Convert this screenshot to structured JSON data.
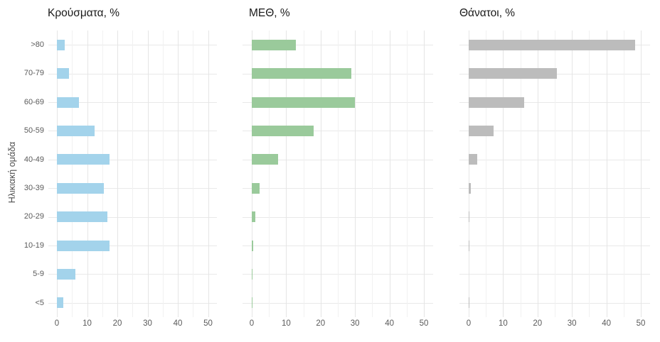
{
  "chart_data": {
    "type": "bar",
    "orientation": "horizontal",
    "title": "",
    "ylabel": "Ηλικιακή ομάδα",
    "xlabel": "",
    "xlim": [
      0,
      50
    ],
    "x_ticks": [
      0,
      10,
      20,
      30,
      40,
      50
    ],
    "x_minor_ticks": [
      5,
      15,
      25,
      35,
      45
    ],
    "grid": true,
    "legend": false,
    "background_color": "#ffffff",
    "grid_major_color": "#e5e5e5",
    "grid_minor_color": "#f1f1f1",
    "categories": [
      ">80",
      "70-79",
      "60-69",
      "50-59",
      "40-49",
      "30-39",
      "20-29",
      "10-19",
      "5-9",
      "<5"
    ],
    "panels": [
      {
        "title": "Κρούσματα, %",
        "color": "#a3d3eb",
        "values": [
          2.7,
          4.0,
          7.3,
          12.5,
          17.4,
          15.5,
          16.6,
          17.5,
          6.0,
          2.2
        ]
      },
      {
        "title": "ΜΕΘ, %",
        "color": "#9aca9b",
        "values": [
          12.8,
          29.0,
          30.0,
          18.0,
          7.7,
          2.3,
          1.0,
          0.4,
          0.15,
          0.15
        ]
      },
      {
        "title": "Θάνατοι, %",
        "color": "#bcbcbc",
        "values": [
          48.4,
          25.6,
          16.2,
          7.3,
          2.4,
          0.6,
          0.1,
          0.1,
          0.0,
          0.05
        ]
      }
    ]
  }
}
